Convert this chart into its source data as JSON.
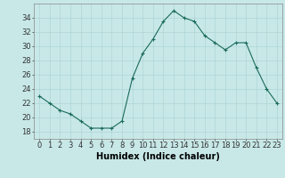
{
  "x": [
    0,
    1,
    2,
    3,
    4,
    5,
    6,
    7,
    8,
    9,
    10,
    11,
    12,
    13,
    14,
    15,
    16,
    17,
    18,
    19,
    20,
    21,
    22,
    23
  ],
  "y": [
    23,
    22,
    21,
    20.5,
    19.5,
    18.5,
    18.5,
    18.5,
    19.5,
    25.5,
    29,
    31,
    33.5,
    35,
    34,
    33.5,
    31.5,
    30.5,
    29.5,
    30.5,
    30.5,
    27,
    24,
    22
  ],
  "line_color": "#1a6b5a",
  "marker": "+",
  "bg_color": "#c8e8e8",
  "grid_color": "#afd4d4",
  "xlabel": "Humidex (Indice chaleur)",
  "ylim": [
    17,
    36
  ],
  "xlim": [
    -0.5,
    23.5
  ],
  "yticks": [
    18,
    20,
    22,
    24,
    26,
    28,
    30,
    32,
    34
  ],
  "xticks": [
    0,
    1,
    2,
    3,
    4,
    5,
    6,
    7,
    8,
    9,
    10,
    11,
    12,
    13,
    14,
    15,
    16,
    17,
    18,
    19,
    20,
    21,
    22,
    23
  ],
  "xtick_labels": [
    "0",
    "1",
    "2",
    "3",
    "4",
    "5",
    "6",
    "7",
    "8",
    "9",
    "10",
    "11",
    "12",
    "13",
    "14",
    "15",
    "16",
    "17",
    "18",
    "19",
    "20",
    "21",
    "22",
    "23"
  ],
  "axis_fontsize": 7,
  "tick_fontsize": 6,
  "xlabel_fontsize": 7
}
